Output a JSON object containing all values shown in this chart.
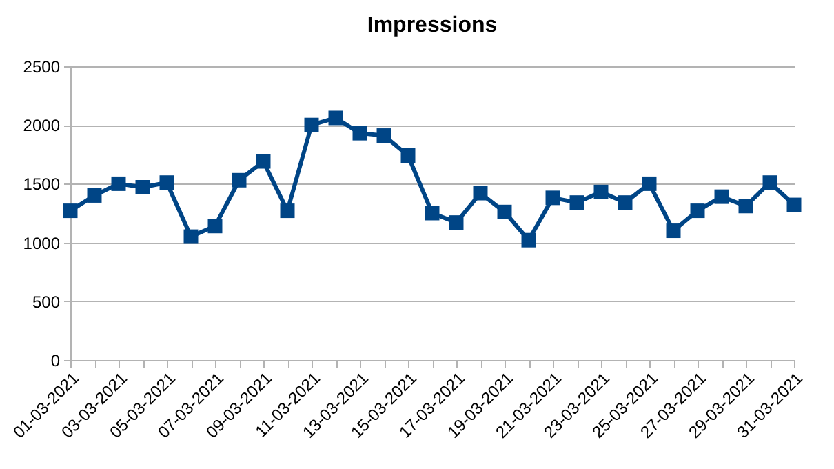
{
  "chart_data": {
    "type": "line",
    "title": "Impressions",
    "categories": [
      "01-03-2021",
      null,
      "03-03-2021",
      null,
      "05-03-2021",
      null,
      "07-03-2021",
      null,
      "09-03-2021",
      null,
      "11-03-2021",
      null,
      "13-03-2021",
      null,
      "15-03-2021",
      null,
      "17-03-2021",
      null,
      "19-03-2021",
      null,
      "21-03-2021",
      null,
      "23-03-2021",
      null,
      "25-03-2021",
      null,
      "27-03-2021",
      null,
      "29-03-2021",
      null,
      "31-03-2021"
    ],
    "series": [
      {
        "color": "#004586",
        "values": [
          1270,
          1400,
          1500,
          1470,
          1510,
          1050,
          1140,
          1530,
          1690,
          1270,
          2000,
          2060,
          1930,
          1910,
          1740,
          1250,
          1170,
          1420,
          1260,
          1020,
          1380,
          1340,
          1430,
          1340,
          1500,
          1100,
          1270,
          1390,
          1310,
          1510,
          1320
        ]
      }
    ],
    "ylim": [
      0,
      2500
    ],
    "yticks": [
      0,
      500,
      1000,
      1500,
      2000,
      2500
    ],
    "grid": "y",
    "marker": "square",
    "line_style": "solid"
  }
}
